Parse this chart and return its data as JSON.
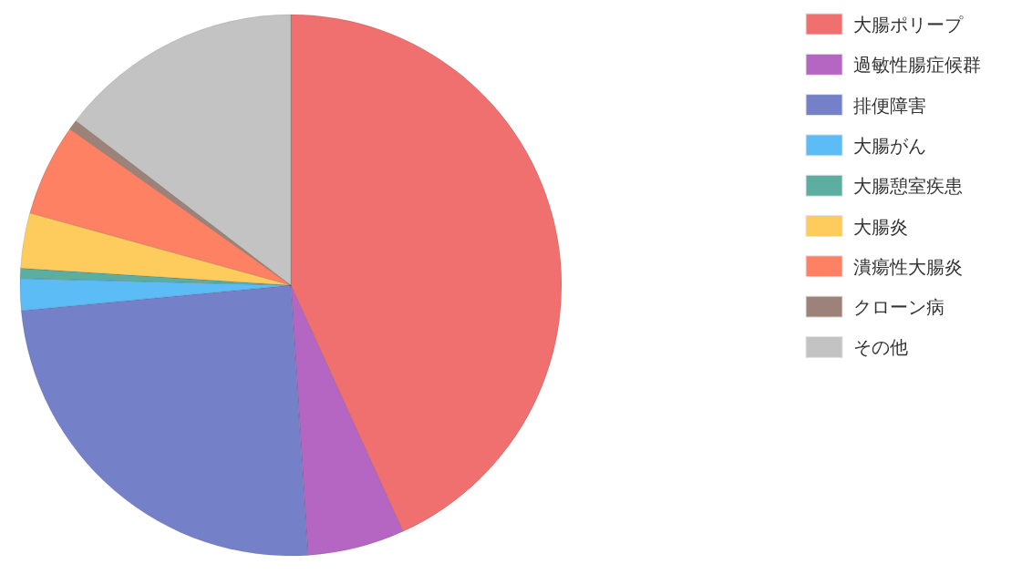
{
  "chart_data": {
    "type": "pie",
    "categories": [
      "大腸ポリープ",
      "過敏性腸症候群",
      "排便障害",
      "大腸がん",
      "大腸憩室疾患",
      "大腸炎",
      "潰瘍性大腸炎",
      "クローン病",
      "その他"
    ],
    "values": [
      43.2,
      5.8,
      24.5,
      1.9,
      0.6,
      3.3,
      5.5,
      0.6,
      14.6
    ],
    "colors": [
      "#f07070",
      "#b565c2",
      "#7480c8",
      "#5bbcf6",
      "#5baea0",
      "#fdcc5d",
      "#fe8163",
      "#9c8278",
      "#c3c3c3"
    ],
    "legend": "right"
  }
}
